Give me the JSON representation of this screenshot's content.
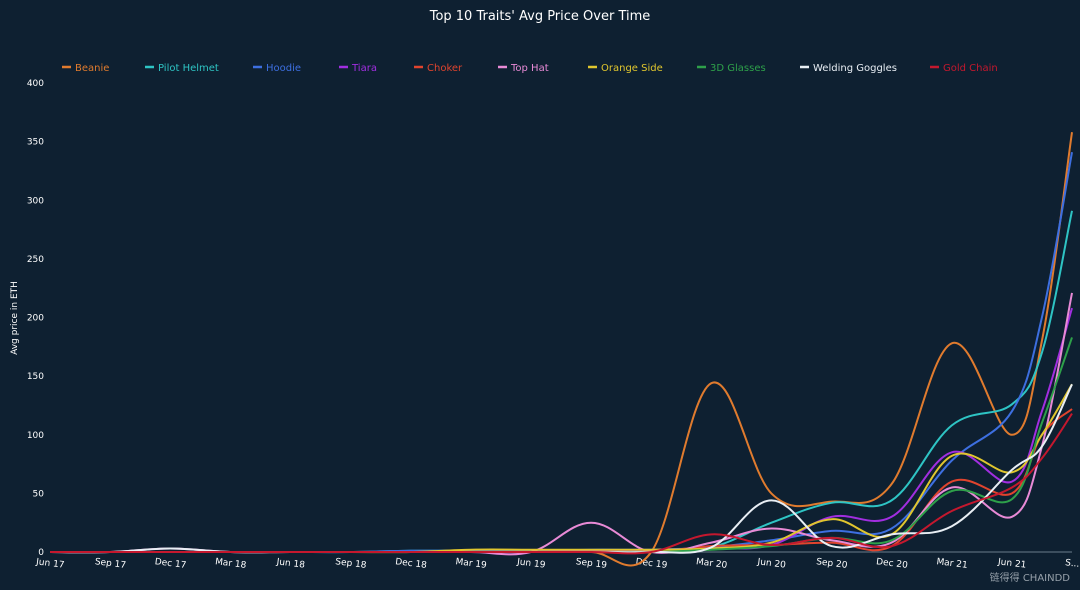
{
  "chart_data": {
    "type": "line",
    "title": "Top 10 Traits' Avg Price Over Time",
    "ylabel": "Avg price in ETH",
    "xlabel": "",
    "ylim": [
      0,
      400
    ],
    "yticks": [
      0,
      50,
      100,
      150,
      200,
      250,
      300,
      350,
      400
    ],
    "xticks": [
      "Jun 17",
      "Sep 17",
      "Dec 17",
      "Mar 18",
      "Jun 18",
      "Sep 18",
      "Dec 18",
      "Mar 19",
      "Jun 19",
      "Sep 19",
      "Dec 19",
      "Mar 20",
      "Jun 20",
      "Sep 20",
      "Dec 20",
      "Mar 21",
      "Jun 21",
      "S..."
    ],
    "x": [
      0,
      1,
      2,
      3,
      4,
      5,
      6,
      7,
      8,
      9,
      10,
      11,
      12,
      13,
      14,
      15,
      16,
      16.5,
      17
    ],
    "legend_position": "top",
    "grid": false,
    "series": [
      {
        "name": "Beanie",
        "color": "#e07b2e",
        "values": [
          0,
          0,
          0,
          0,
          0,
          0,
          0,
          0,
          0,
          0,
          0,
          144,
          50,
          43,
          58,
          178,
          100,
          180,
          358
        ]
      },
      {
        "name": "Pilot Helmet",
        "color": "#2ec4c4",
        "values": [
          0,
          0,
          0,
          0,
          0,
          0,
          1,
          1,
          1,
          1,
          1,
          4,
          25,
          42,
          44,
          108,
          126,
          170,
          291
        ]
      },
      {
        "name": "Hoodie",
        "color": "#3d6fe0",
        "values": [
          0,
          0,
          0,
          0,
          0,
          0,
          1,
          1,
          1,
          2,
          2,
          4,
          10,
          18,
          20,
          78,
          120,
          200,
          341
        ]
      },
      {
        "name": "Tiara",
        "color": "#a12ee0",
        "values": [
          0,
          0,
          0,
          0,
          0,
          0,
          0,
          0,
          0,
          1,
          1,
          3,
          6,
          30,
          30,
          85,
          60,
          120,
          208
        ]
      },
      {
        "name": "Choker",
        "color": "#e0442e",
        "values": [
          0,
          0,
          0,
          0,
          0,
          0,
          0,
          0,
          0,
          0,
          0,
          5,
          6,
          8,
          5,
          60,
          50,
          100,
          122
        ]
      },
      {
        "name": "Top Hat",
        "color": "#e88ad6",
        "values": [
          0,
          0,
          3,
          0,
          0,
          0,
          0,
          0,
          0,
          25,
          0,
          8,
          20,
          10,
          8,
          55,
          30,
          90,
          221
        ]
      },
      {
        "name": "Orange Side",
        "color": "#e0c62e",
        "values": [
          0,
          0,
          0,
          0,
          0,
          0,
          0,
          2,
          2,
          2,
          2,
          3,
          8,
          28,
          15,
          82,
          68,
          100,
          143
        ]
      },
      {
        "name": "3D Glasses",
        "color": "#2ea04a",
        "values": [
          0,
          0,
          0,
          0,
          0,
          0,
          0,
          0,
          0,
          0,
          0,
          2,
          5,
          12,
          10,
          52,
          45,
          110,
          183
        ]
      },
      {
        "name": "Welding Goggles",
        "color": "#e8eef4",
        "values": [
          0,
          0,
          3,
          0,
          0,
          0,
          0,
          0,
          0,
          0,
          0,
          4,
          44,
          5,
          15,
          22,
          70,
          90,
          143
        ]
      },
      {
        "name": "Gold Chain",
        "color": "#c4182e",
        "values": [
          0,
          0,
          0,
          0,
          0,
          0,
          0,
          0,
          0,
          0,
          0,
          15,
          6,
          12,
          5,
          35,
          55,
          80,
          118
        ]
      }
    ]
  },
  "watermark": "链得得 CHAINDD"
}
